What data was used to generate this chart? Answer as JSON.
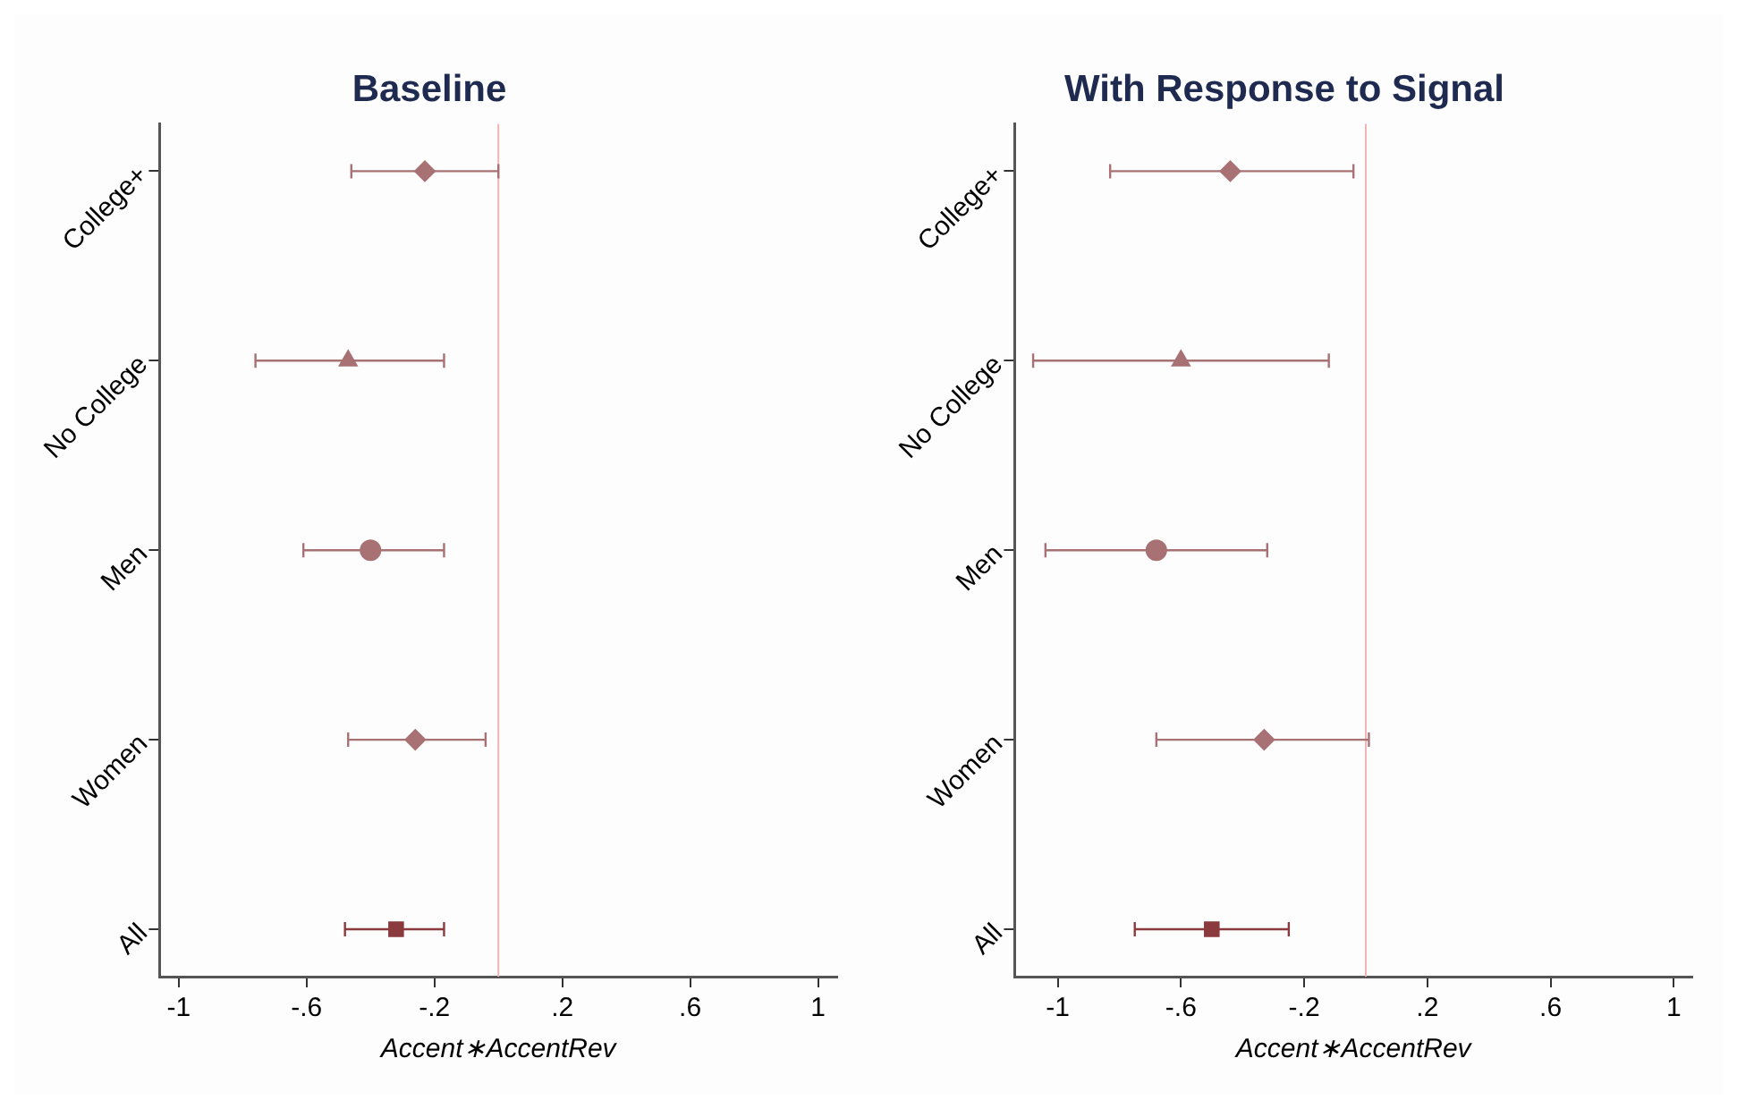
{
  "chart_data": [
    {
      "type": "scatter",
      "orientation": "horizontal",
      "title": "Baseline",
      "xlabel": "Accent∗AccentRev",
      "categories": [
        "College+",
        "No College",
        "Men",
        "Women",
        "All"
      ],
      "series": [
        {
          "color": "#a87174",
          "marker": "diamond",
          "values": [
            -0.23,
            null,
            null,
            null,
            null
          ],
          "errors": [
            [
              -0.46,
              0.0
            ],
            null,
            null,
            null,
            null
          ]
        },
        {
          "color": "#a87174",
          "marker": "triangle",
          "values": [
            null,
            -0.47,
            null,
            null,
            null
          ],
          "errors": [
            null,
            [
              -0.76,
              -0.17
            ],
            null,
            null,
            null
          ]
        },
        {
          "color": "#a87174",
          "marker": "circle",
          "values": [
            null,
            null,
            -0.4,
            null,
            null
          ],
          "errors": [
            null,
            null,
            [
              -0.61,
              -0.17
            ],
            null,
            null
          ]
        },
        {
          "color": "#a87174",
          "marker": "diamond",
          "values": [
            null,
            null,
            null,
            -0.26,
            null
          ],
          "errors": [
            null,
            null,
            null,
            [
              -0.47,
              -0.04
            ],
            null
          ]
        },
        {
          "color": "#8b3a3e",
          "marker": "square",
          "values": [
            null,
            null,
            null,
            null,
            -0.32
          ],
          "errors": [
            null,
            null,
            null,
            null,
            [
              -0.48,
              -0.17
            ]
          ]
        }
      ],
      "xlim": [
        -1.06,
        1.06
      ],
      "xticks": [
        {
          "value": -1,
          "label": "-1"
        },
        {
          "value": -0.6,
          "label": "-.6"
        },
        {
          "value": -0.2,
          "label": "-.2"
        },
        {
          "value": 0.2,
          "label": ".2"
        },
        {
          "value": 0.6,
          "label": ".6"
        },
        {
          "value": 1,
          "label": "1"
        }
      ],
      "ref_lines": [
        {
          "axis": "x",
          "value": 0,
          "color": "#f2b3b3"
        }
      ],
      "grid": false,
      "legend": false
    },
    {
      "type": "scatter",
      "orientation": "horizontal",
      "title": "With Response to Signal",
      "xlabel": "Accent∗AccentRev",
      "categories": [
        "College+",
        "No College",
        "Men",
        "Women",
        "All"
      ],
      "series": [
        {
          "color": "#a87174",
          "marker": "diamond",
          "values": [
            -0.44,
            null,
            null,
            null,
            null
          ],
          "errors": [
            [
              -0.83,
              -0.04
            ],
            null,
            null,
            null,
            null
          ]
        },
        {
          "color": "#a87174",
          "marker": "triangle",
          "values": [
            null,
            -0.6,
            null,
            null,
            null
          ],
          "errors": [
            null,
            [
              -1.08,
              -0.12
            ],
            null,
            null,
            null
          ]
        },
        {
          "color": "#a87174",
          "marker": "circle",
          "values": [
            null,
            null,
            -0.68,
            null,
            null
          ],
          "errors": [
            null,
            null,
            [
              -1.04,
              -0.32
            ],
            null,
            null
          ]
        },
        {
          "color": "#a87174",
          "marker": "diamond",
          "values": [
            null,
            null,
            null,
            -0.33,
            null
          ],
          "errors": [
            null,
            null,
            null,
            [
              -0.68,
              0.01
            ],
            null
          ]
        },
        {
          "color": "#8b3a3e",
          "marker": "square",
          "values": [
            null,
            null,
            null,
            null,
            -0.5
          ],
          "errors": [
            null,
            null,
            null,
            null,
            [
              -0.75,
              -0.25
            ]
          ]
        }
      ],
      "xlim": [
        -1.14,
        1.06
      ],
      "xticks": [
        {
          "value": -1,
          "label": "-1"
        },
        {
          "value": -0.6,
          "label": "-.6"
        },
        {
          "value": -0.2,
          "label": "-.2"
        },
        {
          "value": 0.2,
          "label": ".2"
        },
        {
          "value": 0.6,
          "label": ".6"
        },
        {
          "value": 1,
          "label": "1"
        }
      ],
      "ref_lines": [
        {
          "axis": "x",
          "value": 0,
          "color": "#f2b3b3"
        }
      ],
      "grid": false,
      "legend": false
    }
  ]
}
